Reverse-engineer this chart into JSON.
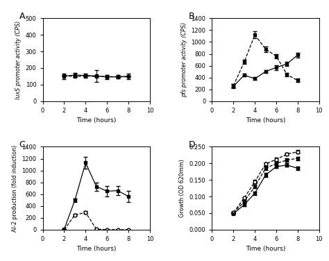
{
  "panel_A": {
    "label": "A.",
    "ylabel": "luxS promoter activity (CPS)",
    "xlabel": "Time (hours)",
    "xlim": [
      0,
      10
    ],
    "ylim": [
      0,
      500
    ],
    "yticks": [
      0,
      100,
      200,
      300,
      400,
      500
    ],
    "xticks": [
      0,
      2,
      4,
      6,
      8,
      10
    ],
    "series1": {
      "x": [
        2,
        3,
        4,
        5,
        6,
        7,
        8
      ],
      "y": [
        150,
        158,
        155,
        153,
        145,
        148,
        150
      ],
      "yerr": [
        15,
        12,
        12,
        35,
        12,
        12,
        18
      ],
      "style": "solid",
      "marker": "s",
      "color": "black",
      "filled": true
    },
    "series2": {
      "x": [
        2,
        3,
        4,
        5,
        6,
        7,
        8
      ],
      "y": [
        155,
        148,
        152,
        148,
        150,
        145,
        148
      ],
      "yerr": [
        0,
        0,
        0,
        0,
        0,
        0,
        0
      ],
      "style": "dashed",
      "marker": "s",
      "color": "black",
      "filled": true
    }
  },
  "panel_B": {
    "label": "B.",
    "ylabel": "pfs promoter activity (CPS)",
    "xlabel": "Time (hours)",
    "xlim": [
      0,
      10
    ],
    "ylim": [
      0,
      1400
    ],
    "yticks": [
      0,
      200,
      400,
      600,
      800,
      1000,
      1200,
      1400
    ],
    "xticks": [
      0,
      2,
      4,
      6,
      8,
      10
    ],
    "series1": {
      "x": [
        2,
        3,
        4,
        5,
        6,
        7,
        8
      ],
      "y": [
        250,
        440,
        380,
        500,
        570,
        630,
        780
      ],
      "yerr": [
        35,
        25,
        25,
        25,
        40,
        35,
        40
      ],
      "style": "solid",
      "marker": "s",
      "color": "black",
      "filled": true
    },
    "series2": {
      "x": [
        2,
        3,
        4,
        5,
        6,
        7,
        8
      ],
      "y": [
        260,
        660,
        1120,
        880,
        760,
        450,
        350
      ],
      "yerr": [
        30,
        35,
        60,
        45,
        35,
        30,
        30
      ],
      "style": "dashed",
      "marker": "s",
      "color": "black",
      "filled": true
    }
  },
  "panel_C": {
    "label": "C.",
    "ylabel": "AI-2 production (fold induction)",
    "xlabel": "Time (hours)",
    "xlim": [
      0,
      10
    ],
    "ylim": [
      0,
      1400
    ],
    "yticks": [
      0,
      200,
      400,
      600,
      800,
      1000,
      1200,
      1400
    ],
    "xticks": [
      0,
      2,
      4,
      6,
      8,
      10
    ],
    "series1": {
      "x": [
        2,
        3,
        4,
        5,
        6,
        7,
        8
      ],
      "y": [
        10,
        500,
        1130,
        730,
        650,
        660,
        560
      ],
      "yerr": [
        5,
        30,
        100,
        70,
        90,
        75,
        90
      ],
      "style": "solid",
      "marker": "s",
      "color": "black",
      "filled": true
    },
    "series2": {
      "x": [
        2,
        3,
        4,
        5,
        6,
        7,
        8
      ],
      "y": [
        0,
        250,
        290,
        10,
        0,
        0,
        0
      ],
      "yerr": [
        0,
        20,
        20,
        5,
        0,
        0,
        0
      ],
      "style": "dashed",
      "marker": "o",
      "color": "black",
      "filled": false
    }
  },
  "panel_D": {
    "label": "D.",
    "ylabel": "Growth (OD 620mm)",
    "xlabel": "Time (hours)",
    "xlim": [
      0,
      10
    ],
    "ylim": [
      0.0,
      0.25
    ],
    "yticks": [
      0.0,
      0.05,
      0.1,
      0.15,
      0.2,
      0.25
    ],
    "xticks": [
      0,
      2,
      4,
      6,
      8,
      10
    ],
    "series1": {
      "x": [
        2,
        3,
        4,
        5,
        6,
        7,
        8
      ],
      "y": [
        0.048,
        0.075,
        0.11,
        0.165,
        0.19,
        0.195,
        0.185
      ],
      "yerr": [
        0.003,
        0.004,
        0.005,
        0.006,
        0.005,
        0.005,
        0.005
      ],
      "style": "solid",
      "marker": "s",
      "color": "black",
      "filled": true
    },
    "series2": {
      "x": [
        2,
        3,
        4,
        5,
        6,
        7,
        8
      ],
      "y": [
        0.05,
        0.085,
        0.13,
        0.185,
        0.2,
        0.21,
        0.215
      ],
      "yerr": [
        0.003,
        0.004,
        0.005,
        0.005,
        0.005,
        0.005,
        0.005
      ],
      "style": "dashed",
      "marker": "s",
      "color": "black",
      "filled": true
    },
    "series3": {
      "x": [
        2,
        3,
        4,
        5,
        6,
        7,
        8
      ],
      "y": [
        0.052,
        0.095,
        0.145,
        0.198,
        0.212,
        0.228,
        0.235
      ],
      "yerr": [
        0.003,
        0.004,
        0.005,
        0.005,
        0.005,
        0.005,
        0.005
      ],
      "style": "dashed",
      "marker": "o",
      "color": "black",
      "filled": false
    }
  }
}
